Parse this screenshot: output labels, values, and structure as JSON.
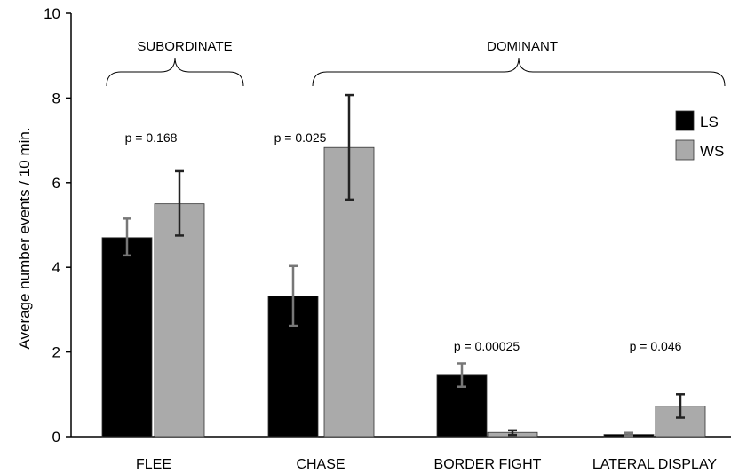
{
  "chart_data": {
    "type": "bar",
    "categories": [
      "FLEE",
      "CHASE",
      "BORDER FIGHT",
      "LATERAL DISPLAY"
    ],
    "series": [
      {
        "name": "LS",
        "color": "#000000",
        "values": [
          4.7,
          3.32,
          1.45,
          0.05
        ],
        "err_low": [
          4.28,
          2.62,
          1.18,
          0.02
        ],
        "err_high": [
          5.15,
          4.03,
          1.73,
          0.09
        ]
      },
      {
        "name": "WS",
        "color": "#aaaaaa",
        "values": [
          5.5,
          6.83,
          0.1,
          0.72
        ],
        "err_low": [
          4.75,
          5.6,
          0.04,
          0.45
        ],
        "err_high": [
          6.27,
          8.07,
          0.15,
          1.0
        ]
      }
    ],
    "ylabel": "Average number events / 10 min.",
    "xlabel": "",
    "ylim": [
      0,
      10
    ],
    "yticks": [
      0,
      2,
      4,
      6,
      8,
      10
    ],
    "annotations": [
      "p = 0.168",
      "p = 0.025",
      "p = 0.00025",
      "p = 0.046"
    ],
    "groups": [
      {
        "label": "SUBORDINATE",
        "categories": [
          "FLEE"
        ]
      },
      {
        "label": "DOMINANT",
        "categories": [
          "CHASE",
          "BORDER FIGHT",
          "LATERAL DISPLAY"
        ]
      }
    ],
    "legend_position": "top-right",
    "grid": false
  }
}
